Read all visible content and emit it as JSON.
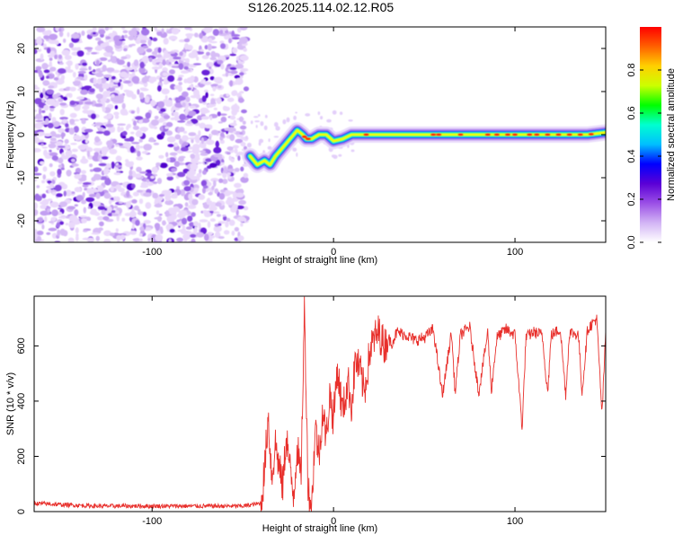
{
  "page_title": "S126.2025.114.02.12.R05",
  "chart_data": [
    {
      "type": "heatmap",
      "title": "S126.2025.114.02.12.R05",
      "xlabel": "Height of straight line (km)",
      "ylabel": "Frequency (Hz)",
      "xlim": [
        -165,
        150
      ],
      "ylim": [
        -25,
        25
      ],
      "xticks": [
        -100,
        0,
        100
      ],
      "yticks": [
        -20,
        -10,
        0,
        10,
        20
      ],
      "grid": false,
      "colorbar": {
        "label": "Normalized spectral amplitude",
        "range": [
          0,
          1
        ],
        "ticks": [
          "0.0",
          "0.2",
          "0.4",
          "0.6",
          "0.8"
        ],
        "colors": [
          "#ffffff",
          "#d2b4f5",
          "#9b4fe6",
          "#5a00d6",
          "#0000ff",
          "#00bfff",
          "#00ffd0",
          "#00ff00",
          "#ccff00",
          "#ffd000",
          "#ff6000",
          "#ff0000"
        ]
      },
      "noise_region": {
        "x_start": -165,
        "x_end": -48,
        "y_start": -25,
        "y_end": 25
      },
      "ridge": {
        "x": [
          -46,
          -42,
          -38,
          -35,
          -32,
          -28,
          -24,
          -20,
          -17,
          -15,
          -12,
          -8,
          -4,
          0,
          5,
          10,
          20,
          40,
          60,
          80,
          100,
          120,
          140,
          150
        ],
        "y": [
          -5,
          -7,
          -6,
          -7,
          -5,
          -3,
          -1,
          1,
          0,
          -1,
          -1,
          0,
          0,
          -1.5,
          -1,
          0,
          0,
          0,
          0,
          0,
          0,
          0,
          0,
          0.5
        ]
      }
    },
    {
      "type": "line",
      "xlabel": "Height of straight line (km)",
      "ylabel": "SNR (10 * v/v)",
      "xlim": [
        -165,
        150
      ],
      "ylim": [
        0,
        780
      ],
      "xticks": [
        -100,
        0,
        100
      ],
      "yticks": [
        0,
        200,
        400,
        600
      ],
      "grid": false,
      "color": "#e8302c",
      "series": [
        {
          "x": [
            -165,
            -150,
            -130,
            -110,
            -90,
            -70,
            -50,
            -40,
            -38,
            -36,
            -34,
            -32,
            -30,
            -28,
            -26,
            -24,
            -22,
            -20,
            -18,
            -16,
            -14,
            -12,
            -10,
            -8,
            -6,
            -4,
            -2,
            0,
            2,
            5,
            8,
            10,
            12,
            15,
            17,
            20,
            22,
            25,
            28,
            30,
            32,
            35,
            40,
            45,
            50,
            55,
            60,
            65,
            67,
            70,
            75,
            80,
            85,
            87,
            90,
            95,
            100,
            104,
            106,
            110,
            115,
            118,
            120,
            125,
            128,
            130,
            135,
            137,
            140,
            145,
            148,
            150
          ],
          "y": [
            30,
            25,
            20,
            20,
            20,
            20,
            20,
            30,
            150,
            350,
            120,
            250,
            160,
            90,
            280,
            150,
            60,
            240,
            110,
            740,
            80,
            20,
            310,
            200,
            370,
            260,
            430,
            330,
            520,
            360,
            470,
            380,
            550,
            500,
            430,
            580,
            620,
            650,
            600,
            630,
            610,
            650,
            640,
            620,
            630,
            660,
            420,
            650,
            430,
            640,
            670,
            430,
            650,
            440,
            630,
            660,
            640,
            300,
            630,
            650,
            640,
            430,
            640,
            660,
            420,
            650,
            640,
            430,
            660,
            700,
            350,
            650
          ]
        }
      ]
    }
  ]
}
